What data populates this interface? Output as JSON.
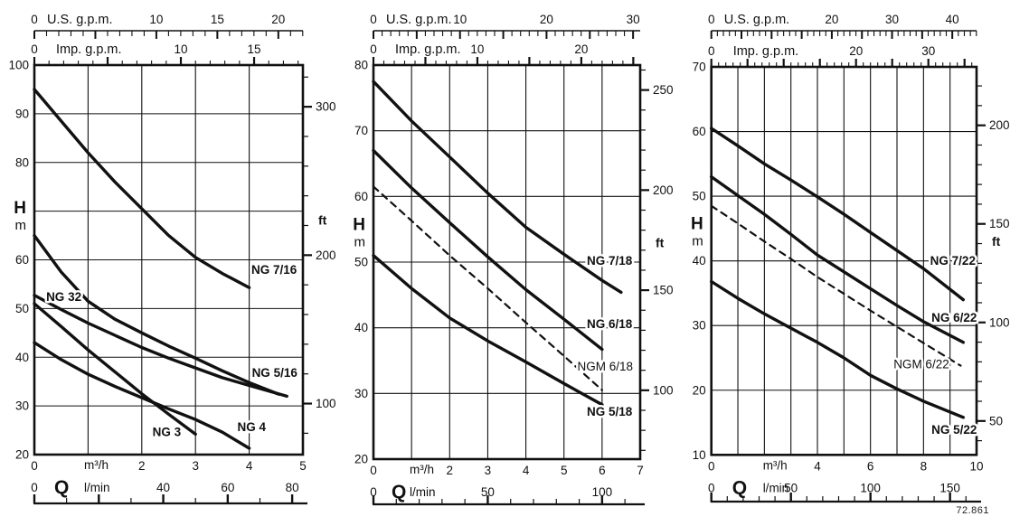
{
  "figure_number": "72.861",
  "chart_data": [
    {
      "type": "line",
      "title": "",
      "x_axis": {
        "quantity": "Q",
        "unit": "m³/h",
        "min": 0,
        "max": 5,
        "tick_labels": [
          0,
          2,
          3,
          4,
          5
        ]
      },
      "lmin_axis": {
        "unit": "l/min",
        "tick_labels": [
          0,
          40,
          60,
          80
        ],
        "minor_step": 10,
        "major_every": 20
      },
      "us_gpm_axis": {
        "title": "U.S. g.p.m.",
        "tick_labels": [
          0,
          10,
          15,
          20
        ]
      },
      "imp_gpm_axis": {
        "title": "Imp. g.p.m.",
        "tick_labels": [
          0,
          10,
          15
        ]
      },
      "y_axis": {
        "quantity": "H",
        "unit": "m",
        "min": 20,
        "max": 100,
        "grid_step": 10,
        "tick_labels": [
          100,
          90,
          80,
          60,
          50,
          40,
          30,
          20
        ],
        "quantity_label_at": 69
      },
      "ft_axis": {
        "unit": "ft",
        "tick_labels": [
          300,
          200,
          100
        ],
        "minor_step": 20,
        "unit_label_at": 68
      },
      "grid": true,
      "series": [
        {
          "name": "NG 7/16",
          "dashed": false,
          "label_anchor": [
            4.04,
            58.0
          ],
          "points": [
            [
              0,
              95
            ],
            [
              0.5,
              88.5
            ],
            [
              1,
              82
            ],
            [
              1.5,
              76
            ],
            [
              2,
              70.5
            ],
            [
              2.5,
              65
            ],
            [
              3,
              60.5
            ],
            [
              3.5,
              57.2
            ],
            [
              4,
              54.3
            ]
          ]
        },
        {
          "name": "NG 5/16",
          "dashed": false,
          "label_anchor": [
            4.05,
            36.8
          ],
          "points": [
            [
              0,
              65
            ],
            [
              0.5,
              57.5
            ],
            [
              1,
              51.5
            ],
            [
              1.5,
              47.8
            ],
            [
              2,
              45
            ],
            [
              2.5,
              42.3
            ],
            [
              3,
              39.8
            ],
            [
              3.5,
              37.2
            ],
            [
              4,
              34.8
            ],
            [
              4.55,
              32.4
            ]
          ]
        },
        {
          "name": "NG 32",
          "dashed": false,
          "label_anchor": [
            0.22,
            52.4
          ],
          "points": [
            [
              0,
              52.7
            ],
            [
              0.5,
              49.8
            ],
            [
              1,
              47
            ],
            [
              1.5,
              44.5
            ],
            [
              2,
              42
            ],
            [
              2.5,
              39.8
            ],
            [
              3,
              37.8
            ],
            [
              3.5,
              35.8
            ],
            [
              4,
              34.2
            ],
            [
              4.7,
              32
            ]
          ]
        },
        {
          "name": "NG 3",
          "dashed": false,
          "label_anchor": [
            2.2,
            24.6
          ],
          "points": [
            [
              0,
              51
            ],
            [
              0.5,
              46.3
            ],
            [
              1,
              41.5
            ],
            [
              1.5,
              37
            ],
            [
              2,
              32.5
            ],
            [
              2.5,
              28.3
            ],
            [
              3,
              24.2
            ]
          ]
        },
        {
          "name": "NG 4",
          "dashed": false,
          "label_anchor": [
            3.78,
            25.7
          ],
          "points": [
            [
              0,
              43
            ],
            [
              0.5,
              39.5
            ],
            [
              1,
              36.5
            ],
            [
              1.5,
              34
            ],
            [
              2,
              31.7
            ],
            [
              2.5,
              29.4
            ],
            [
              3,
              27.2
            ],
            [
              3.5,
              24.6
            ],
            [
              4,
              21.3
            ]
          ]
        }
      ]
    },
    {
      "type": "line",
      "title": "",
      "x_axis": {
        "quantity": "Q",
        "unit": "m³/h",
        "min": 0,
        "max": 7,
        "tick_labels": [
          0,
          2,
          3,
          4,
          5,
          6,
          7
        ]
      },
      "lmin_axis": {
        "unit": "l/min",
        "tick_labels": [
          0,
          50,
          100
        ],
        "minor_step": 10,
        "major_every": 50
      },
      "us_gpm_axis": {
        "title": "U.S. g.p.m.",
        "tick_labels": [
          0,
          10,
          20,
          30
        ]
      },
      "imp_gpm_axis": {
        "title": "Imp. g.p.m.",
        "tick_labels": [
          0,
          10,
          20
        ]
      },
      "y_axis": {
        "quantity": "H",
        "unit": "m",
        "min": 20,
        "max": 80,
        "grid_step": 10,
        "tick_labels": [
          80,
          70,
          60,
          50,
          40,
          30,
          20
        ],
        "quantity_label_at": 54.5
      },
      "ft_axis": {
        "unit": "ft",
        "tick_labels": [
          250,
          200,
          150,
          100
        ],
        "minor_step": 10,
        "unit_label_at": 52.8
      },
      "grid": true,
      "series": [
        {
          "name": "NG 7/18",
          "dashed": false,
          "label_anchor": [
            5.6,
            50.2
          ],
          "points": [
            [
              0,
              77.5
            ],
            [
              1,
              71.5
            ],
            [
              2,
              66
            ],
            [
              3,
              60.5
            ],
            [
              4,
              55.3
            ],
            [
              5,
              51.2
            ],
            [
              6,
              47.2
            ],
            [
              6.5,
              45.4
            ]
          ]
        },
        {
          "name": "NG 6/18",
          "dashed": false,
          "label_anchor": [
            5.6,
            40.6
          ],
          "points": [
            [
              0,
              67
            ],
            [
              1,
              61.3
            ],
            [
              2,
              56
            ],
            [
              3,
              50.8
            ],
            [
              4,
              45.8
            ],
            [
              5,
              41.3
            ],
            [
              6,
              36.7
            ]
          ]
        },
        {
          "name": "NGM 6/18",
          "dashed": true,
          "label_anchor": [
            5.35,
            34.1
          ],
          "points": [
            [
              0,
              61.5
            ],
            [
              1,
              56.3
            ],
            [
              2,
              51
            ],
            [
              3,
              46
            ],
            [
              4,
              40.8
            ],
            [
              5,
              35.7
            ],
            [
              6,
              30.5
            ]
          ]
        },
        {
          "name": "NG 5/18",
          "dashed": false,
          "label_anchor": [
            5.6,
            27.2
          ],
          "points": [
            [
              0,
              51
            ],
            [
              1,
              46
            ],
            [
              2,
              41.5
            ],
            [
              3,
              38
            ],
            [
              4,
              34.8
            ],
            [
              5,
              31.5
            ],
            [
              6,
              28.3
            ]
          ]
        }
      ]
    },
    {
      "type": "line",
      "title": "",
      "x_axis": {
        "quantity": "Q",
        "unit": "m³/h",
        "min": 0,
        "max": 10,
        "tick_labels": [
          0,
          4,
          6,
          8,
          10
        ]
      },
      "lmin_axis": {
        "unit": "l/min",
        "tick_labels": [
          0,
          50,
          100,
          150
        ],
        "minor_step": 10,
        "major_every": 50
      },
      "us_gpm_axis": {
        "title": "U.S. g.p.m.",
        "tick_labels": [
          0,
          20,
          30,
          40
        ]
      },
      "imp_gpm_axis": {
        "title": "Imp. g.p.m.",
        "tick_labels": [
          0,
          20,
          30
        ]
      },
      "y_axis": {
        "quantity": "H",
        "unit": "m",
        "min": 10,
        "max": 70,
        "grid_step": 10,
        "tick_labels": [
          70,
          60,
          50,
          40,
          30,
          20,
          10
        ],
        "quantity_label_at": 44.5
      },
      "ft_axis": {
        "unit": "ft",
        "tick_labels": [
          200,
          150,
          100,
          50
        ],
        "minor_step": 10,
        "unit_label_at": 42.9
      },
      "grid": true,
      "series": [
        {
          "name": "NG 7/22",
          "dashed": false,
          "label_anchor": [
            8.25,
            40.0
          ],
          "points": [
            [
              0,
              60.5
            ],
            [
              1,
              57.8
            ],
            [
              2,
              55
            ],
            [
              3,
              52.5
            ],
            [
              4,
              49.9
            ],
            [
              5,
              47.2
            ],
            [
              6,
              44.4
            ],
            [
              7,
              41.6
            ],
            [
              8,
              38.8
            ],
            [
              9.5,
              34
            ]
          ]
        },
        {
          "name": "NG 6/22",
          "dashed": false,
          "label_anchor": [
            8.3,
            31.2
          ],
          "points": [
            [
              0,
              53
            ],
            [
              1,
              50.1
            ],
            [
              2,
              47.2
            ],
            [
              3,
              44.1
            ],
            [
              4,
              40.9
            ],
            [
              5,
              38.3
            ],
            [
              6,
              35.7
            ],
            [
              7,
              33.1
            ],
            [
              8,
              30.6
            ],
            [
              9.5,
              27.4
            ]
          ]
        },
        {
          "name": "NGM 6/22",
          "dashed": true,
          "label_anchor": [
            6.87,
            24.0
          ],
          "points": [
            [
              0,
              48.5
            ],
            [
              1,
              45.8
            ],
            [
              2,
              43
            ],
            [
              3,
              40.3
            ],
            [
              4,
              37.5
            ],
            [
              5,
              34.9
            ],
            [
              6,
              32.3
            ],
            [
              7,
              29.8
            ],
            [
              8,
              27.3
            ],
            [
              9.4,
              23.8
            ]
          ]
        },
        {
          "name": "NG 5/22",
          "dashed": false,
          "label_anchor": [
            8.3,
            13.9
          ],
          "points": [
            [
              0,
              36.8
            ],
            [
              1,
              34.2
            ],
            [
              2,
              31.8
            ],
            [
              3,
              29.6
            ],
            [
              4,
              27.4
            ],
            [
              5,
              25
            ],
            [
              6,
              22.3
            ],
            [
              7,
              20.2
            ],
            [
              8,
              18.3
            ],
            [
              9.5,
              15.8
            ]
          ]
        }
      ]
    }
  ]
}
